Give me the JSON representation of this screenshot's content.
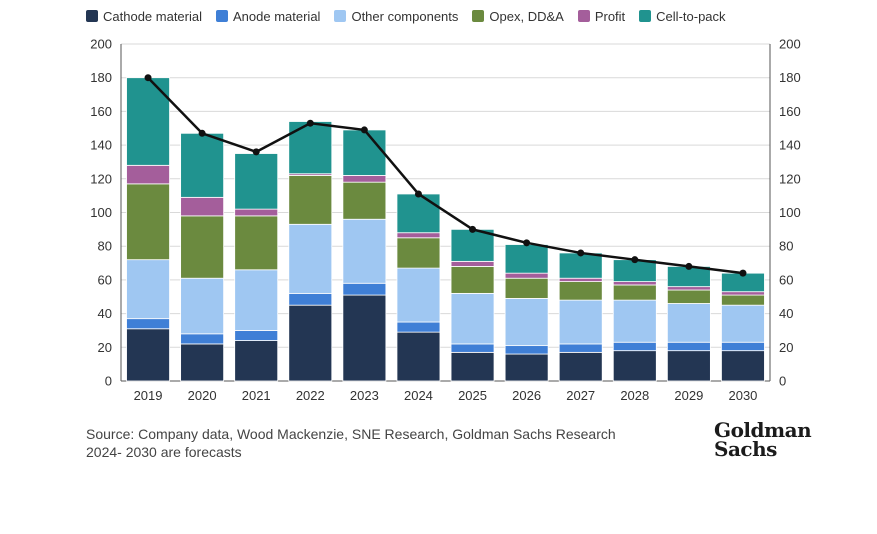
{
  "chart_data": {
    "type": "bar",
    "stacked": true,
    "categories": [
      "2019",
      "2020",
      "2021",
      "2022",
      "2023",
      "2024",
      "2025",
      "2026",
      "2027",
      "2028",
      "2029",
      "2030"
    ],
    "series": [
      {
        "name": "Cathode material",
        "color": "#233653",
        "values": [
          31,
          22,
          24,
          45,
          51,
          29,
          17,
          16,
          17,
          18,
          18,
          18
        ]
      },
      {
        "name": "Anode material",
        "color": "#3f7fd6",
        "values": [
          6,
          6,
          6,
          7,
          7,
          6,
          5,
          5,
          5,
          5,
          5,
          5
        ]
      },
      {
        "name": "Other components",
        "color": "#9fc7f2",
        "values": [
          35,
          33,
          36,
          41,
          38,
          32,
          30,
          28,
          26,
          25,
          23,
          22
        ]
      },
      {
        "name": "Opex, DD&A",
        "color": "#6b8a3f",
        "values": [
          45,
          37,
          32,
          29,
          22,
          18,
          16,
          12,
          11,
          9,
          8,
          6
        ]
      },
      {
        "name": "Profit",
        "color": "#a45e9b",
        "values": [
          11,
          11,
          4,
          1,
          4,
          3,
          3,
          3,
          2,
          2,
          2,
          2
        ]
      },
      {
        "name": "Cell-to-pack",
        "color": "#20938f",
        "values": [
          52,
          38,
          33,
          31,
          27,
          23,
          19,
          17,
          15,
          13,
          12,
          11
        ]
      }
    ],
    "line": {
      "color": "#111111",
      "values": [
        180,
        147,
        136,
        153,
        149,
        111,
        90,
        82,
        76,
        72,
        68,
        64
      ]
    },
    "ylim": [
      0,
      200
    ],
    "yticks": [
      0,
      20,
      40,
      60,
      80,
      100,
      120,
      140,
      160,
      180,
      200
    ],
    "y2lim": [
      0,
      200
    ],
    "grid": true,
    "legend_position": "top-left"
  },
  "source_line1": "Source: Company data, Wood Mackenzie, SNE Research, Goldman Sachs Research",
  "source_line2": "2024- 2030 are forecasts",
  "logo": {
    "line1": "Goldman",
    "line2": "Sachs"
  }
}
